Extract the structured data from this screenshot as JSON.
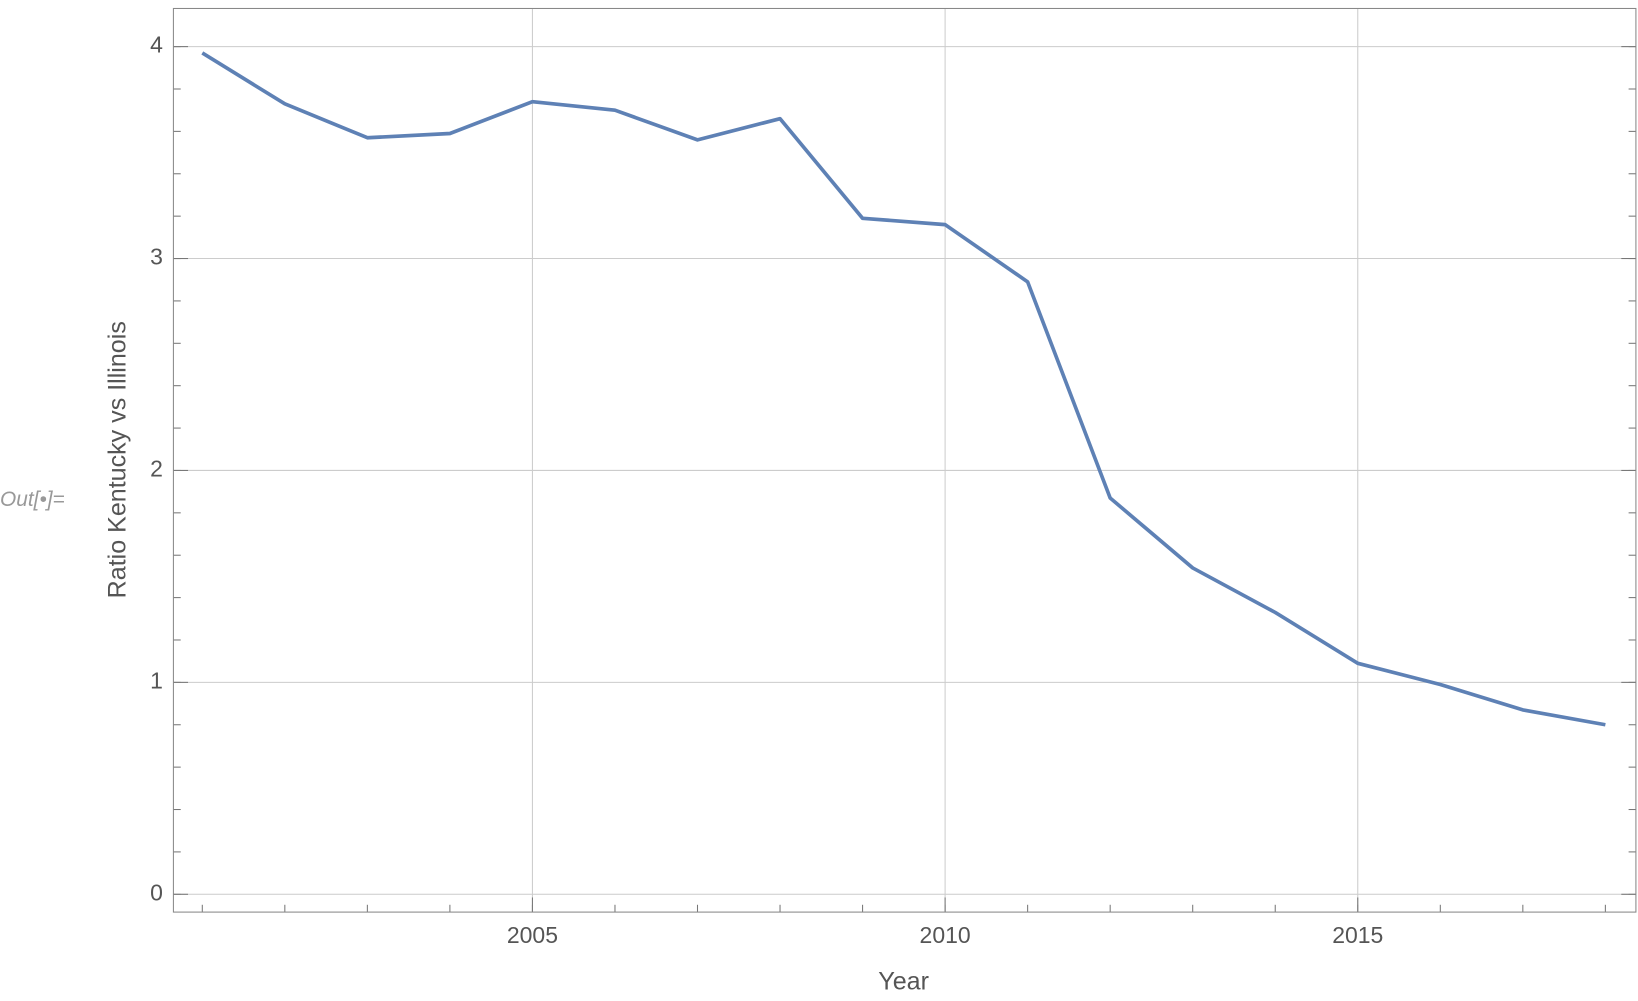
{
  "cell_label": "Out[•]=",
  "chart_data": {
    "type": "line",
    "x_label": "Year",
    "y_label": "Ratio Kentucky vs Illinois",
    "x": [
      2001,
      2002,
      2003,
      2004,
      2005,
      2006,
      2007,
      2008,
      2009,
      2010,
      2011,
      2012,
      2013,
      2014,
      2015,
      2016,
      2017,
      2018
    ],
    "series": [
      {
        "color": "#5e81b5",
        "values": [
          3.97,
          3.73,
          3.57,
          3.59,
          3.74,
          3.7,
          3.56,
          3.66,
          3.19,
          3.16,
          2.89,
          1.87,
          1.54,
          1.33,
          1.09,
          0.99,
          0.87,
          0.8
        ]
      }
    ],
    "xlim": [
      2000.65,
      2018.37
    ],
    "ylim": [
      -0.084,
      4.18
    ],
    "xticks": [
      2005,
      2010,
      2015
    ],
    "yticks": [
      0,
      1,
      2,
      3,
      4
    ],
    "grid": true
  }
}
